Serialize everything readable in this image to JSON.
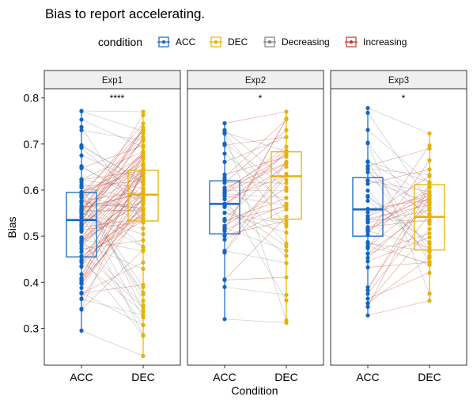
{
  "chart_data": {
    "type": "box_paired_dot",
    "title": "Bias to report accelerating.",
    "xlabel": "Condition",
    "ylabel": "Bias",
    "ylim": [
      0.22,
      0.82
    ],
    "yticks": [
      0.3,
      0.4,
      0.5,
      0.6,
      0.7,
      0.8
    ],
    "categories": [
      "ACC",
      "DEC"
    ],
    "legend": {
      "title": "condition",
      "position": "top",
      "entries": [
        {
          "name": "ACC",
          "color": "#1565C0",
          "marker": "box"
        },
        {
          "name": "DEC",
          "color": "#E8B200",
          "marker": "box"
        },
        {
          "name": "Decreasing",
          "color": "#808080",
          "marker": "line"
        },
        {
          "name": "Increasing",
          "color": "#C0392B",
          "marker": "line"
        }
      ]
    },
    "panels": [
      {
        "label": "Exp1",
        "significance": "****",
        "boxes": {
          "ACC": {
            "q1": 0.455,
            "median": 0.535,
            "q3": 0.595,
            "whisker_low": 0.295,
            "whisker_high": 0.772
          },
          "DEC": {
            "q1": 0.533,
            "median": 0.59,
            "q3": 0.643,
            "whisker_low": 0.24,
            "whisker_high": 0.77
          }
        },
        "n_pairs": 110,
        "points_ACC_range": [
          0.295,
          0.772
        ],
        "points_DEC_range": [
          0.24,
          0.77
        ]
      },
      {
        "label": "Exp2",
        "significance": "*",
        "boxes": {
          "ACC": {
            "q1": 0.505,
            "median": 0.57,
            "q3": 0.62,
            "whisker_low": 0.32,
            "whisker_high": 0.745
          },
          "DEC": {
            "q1": 0.537,
            "median": 0.63,
            "q3": 0.683,
            "whisker_low": 0.312,
            "whisker_high": 0.77
          }
        },
        "n_pairs": 50,
        "points_ACC_range": [
          0.32,
          0.745
        ],
        "points_DEC_range": [
          0.312,
          0.77
        ]
      },
      {
        "label": "Exp3",
        "significance": "*",
        "boxes": {
          "ACC": {
            "q1": 0.5,
            "median": 0.558,
            "q3": 0.627,
            "whisker_low": 0.328,
            "whisker_high": 0.778
          },
          "DEC": {
            "q1": 0.47,
            "median": 0.542,
            "q3": 0.612,
            "whisker_low": 0.36,
            "whisker_high": 0.723
          }
        },
        "n_pairs": 52,
        "points_ACC_range": [
          0.328,
          0.778
        ],
        "points_DEC_range": [
          0.36,
          0.723
        ]
      }
    ]
  }
}
